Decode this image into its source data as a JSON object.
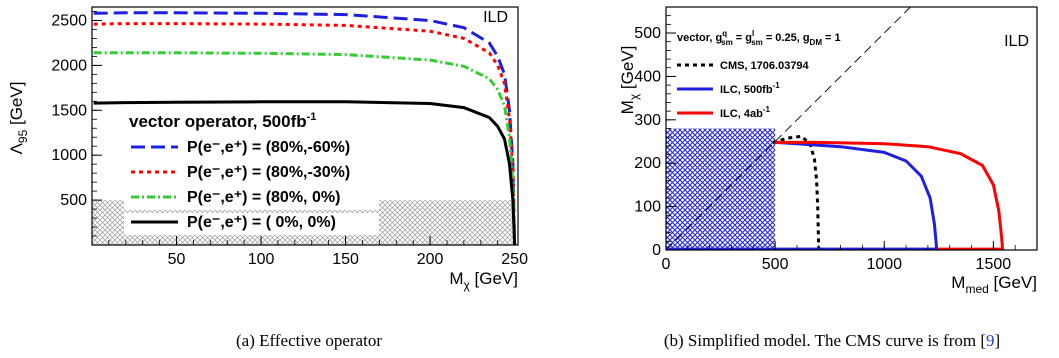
{
  "chart_data": [
    {
      "type": "line",
      "tag": "ILD",
      "xlabel_main": "M",
      "xlabel_sub": "χ",
      "xlabel_unit": " [GeV]",
      "ylabel_main": "Λ",
      "ylabel_sub": "95",
      "ylabel_unit": " [GeV]",
      "xlim": [
        0,
        252
      ],
      "ylim": [
        0,
        2650
      ],
      "x_ticks": [
        50,
        100,
        150,
        200,
        250
      ],
      "y_ticks": [
        500,
        1000,
        1500,
        2000,
        2500
      ],
      "legend_title": "vector operator, 500fb",
      "legend_title_sup": "-1",
      "legend_placement": "bottom-left",
      "excluded_band": {
        "label": "",
        "ymax": 500,
        "xmax": 250
      },
      "series": [
        {
          "name": "P(e⁻,e⁺) = (80%,-60%)",
          "color": "#1f1fe0",
          "style": "dashed",
          "x": [
            1,
            20,
            50,
            100,
            150,
            200,
            220,
            235,
            240,
            244,
            247,
            249,
            250
          ],
          "y": [
            2580,
            2585,
            2585,
            2580,
            2565,
            2500,
            2420,
            2250,
            2100,
            1900,
            1500,
            900,
            0
          ]
        },
        {
          "name": "P(e⁻,e⁺) = (80%,-30%)",
          "color": "#ff0000",
          "style": "dotted",
          "x": [
            1,
            20,
            50,
            100,
            150,
            200,
            220,
            235,
            240,
            244,
            247,
            249,
            250
          ],
          "y": [
            2460,
            2465,
            2465,
            2460,
            2445,
            2380,
            2300,
            2140,
            2000,
            1800,
            1400,
            850,
            0
          ]
        },
        {
          "name": "P(e⁻,e⁺) = (80%,   0%)",
          "color": "#33cc33",
          "style": "dashdot",
          "x": [
            1,
            20,
            50,
            100,
            150,
            200,
            220,
            235,
            240,
            244,
            247,
            249,
            250
          ],
          "y": [
            2140,
            2140,
            2140,
            2135,
            2120,
            2060,
            1990,
            1850,
            1730,
            1550,
            1200,
            700,
            0
          ]
        },
        {
          "name": "P(e⁻,e⁺) = (  0%,   0%)",
          "color": "#000000",
          "style": "solid",
          "x": [
            1,
            20,
            50,
            100,
            150,
            200,
            220,
            235,
            240,
            244,
            247,
            249,
            250
          ],
          "y": [
            1580,
            1585,
            1590,
            1595,
            1595,
            1575,
            1530,
            1420,
            1320,
            1180,
            900,
            500,
            0
          ]
        }
      ],
      "caption": "(a)  Effective operator"
    },
    {
      "type": "line",
      "tag": "ILD",
      "xlabel_main": "M",
      "xlabel_sub": "med",
      "xlabel_unit": " [GeV]",
      "ylabel_main": "M",
      "ylabel_sub": "χ",
      "ylabel_unit": " [GeV]",
      "xlim": [
        0,
        1700
      ],
      "ylim": [
        0,
        560
      ],
      "x_ticks": [
        0,
        500,
        1000,
        1500
      ],
      "y_ticks": [
        0,
        100,
        200,
        300,
        400,
        500
      ],
      "legend_title": "vector,  g",
      "legend_title_parts": {
        "g1_sup": "q",
        "g1_sub": "sm",
        "eq1": " = g",
        "g2_sup": "l",
        "g2_sub": "sm",
        "eq2": " = 0.25,  g",
        "g3_sub": "DM",
        "eq3": " = 1"
      },
      "legend_placement": "top-left",
      "excluded_box": {
        "xmax": 500,
        "ymax": 280
      },
      "diagonal": {
        "label": "",
        "slope": 0.5
      },
      "series": [
        {
          "name": "CMS, 1706.03794",
          "color": "#000000",
          "style": "dotted",
          "x": [
            490,
            560,
            620,
            660,
            680,
            690,
            695,
            698,
            700
          ],
          "y": [
            248,
            258,
            262,
            245,
            210,
            160,
            100,
            40,
            0
          ]
        },
        {
          "name": "ILC, 500fb",
          "name_sup": "-1",
          "color": "#1f1fe0",
          "style": "solid",
          "x": [
            500,
            600,
            800,
            1000,
            1100,
            1170,
            1210,
            1230,
            1238,
            1240,
            1000,
            500,
            0
          ],
          "y": [
            248,
            245,
            238,
            225,
            205,
            170,
            120,
            60,
            15,
            2,
            2,
            2,
            2
          ]
        },
        {
          "name": "ILC, 4ab",
          "name_sup": "-1",
          "color": "#ff0000",
          "style": "solid",
          "x": [
            500,
            700,
            1000,
            1200,
            1350,
            1450,
            1500,
            1525,
            1538,
            1542,
            1245
          ],
          "y": [
            248,
            248,
            245,
            238,
            222,
            195,
            150,
            90,
            30,
            2,
            2
          ]
        }
      ],
      "caption": "(b)  Simplified model. The CMS curve is from [",
      "caption_ref": "9",
      "caption_end": "]"
    }
  ]
}
